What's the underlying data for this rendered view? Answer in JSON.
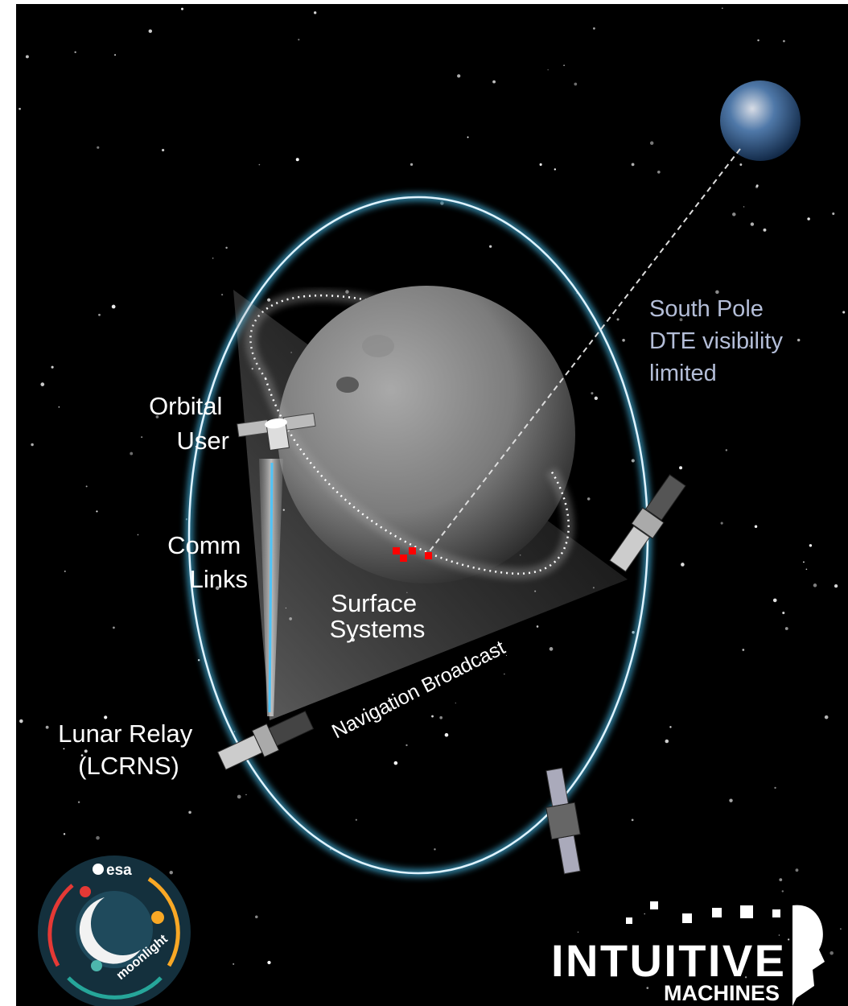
{
  "labels": {
    "orbital_user": [
      "Orbital",
      "User"
    ],
    "comm_links": [
      "Comm",
      "Links"
    ],
    "surface_systems": [
      "Surface",
      "Systems"
    ],
    "lunar_relay": [
      "Lunar Relay",
      "(LCRNS)"
    ],
    "south_pole": [
      "South Pole",
      "DTE visibility",
      "limited"
    ],
    "navigation": "Navigation Broadcast"
  },
  "logos": {
    "esa": "esa",
    "moonlight": "moonlight",
    "intuitive": "INTUITIVE",
    "machines": "MACHINES"
  }
}
